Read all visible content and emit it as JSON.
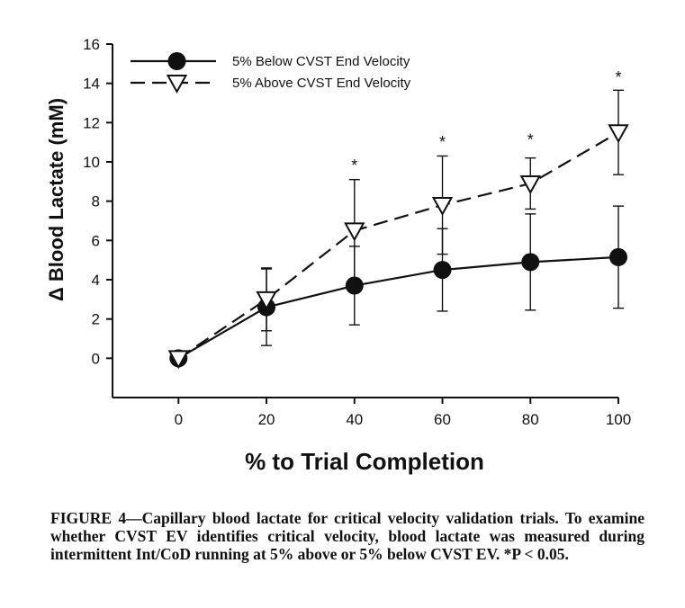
{
  "chart_data": {
    "type": "line",
    "title": "",
    "xlabel": "% to Trial Completion",
    "ylabel": "Δ Blood Lactate (mM)",
    "x": [
      0,
      20,
      40,
      60,
      80,
      100
    ],
    "xlim": [
      -15,
      100
    ],
    "ylim": [
      -2,
      16
    ],
    "xticks": [
      0,
      20,
      40,
      60,
      80,
      100
    ],
    "yticks": [
      0,
      2,
      4,
      6,
      8,
      10,
      12,
      14,
      16
    ],
    "legend_position": "top-left",
    "series": [
      {
        "name": "5% Below CVST End Velocity",
        "marker": "filled-circle",
        "line": "solid",
        "values": [
          0,
          2.6,
          3.7,
          4.5,
          4.9,
          5.15
        ],
        "error": [
          0,
          1.95,
          2.0,
          2.1,
          2.45,
          2.6
        ]
      },
      {
        "name": "5% Above CVST End Velocity",
        "marker": "open-triangle-down",
        "line": "dashed",
        "values": [
          0,
          3.0,
          6.5,
          7.8,
          8.9,
          11.5
        ],
        "error": [
          0,
          1.6,
          2.6,
          2.5,
          1.3,
          2.15
        ]
      }
    ],
    "annotations": [
      {
        "x": 40,
        "y": 10.0,
        "text": "*"
      },
      {
        "x": 60,
        "y": 11.2,
        "text": "*"
      },
      {
        "x": 80,
        "y": 11.3,
        "text": "*"
      },
      {
        "x": 100,
        "y": 14.5,
        "text": "*"
      }
    ]
  },
  "caption": "FIGURE 4—Capillary blood lactate for critical velocity validation trials. To examine whether CVST EV identifies critical velocity, blood lactate was measured during intermittent Int/CoD running at 5% above or 5% below CVST EV. *P < 0.05."
}
